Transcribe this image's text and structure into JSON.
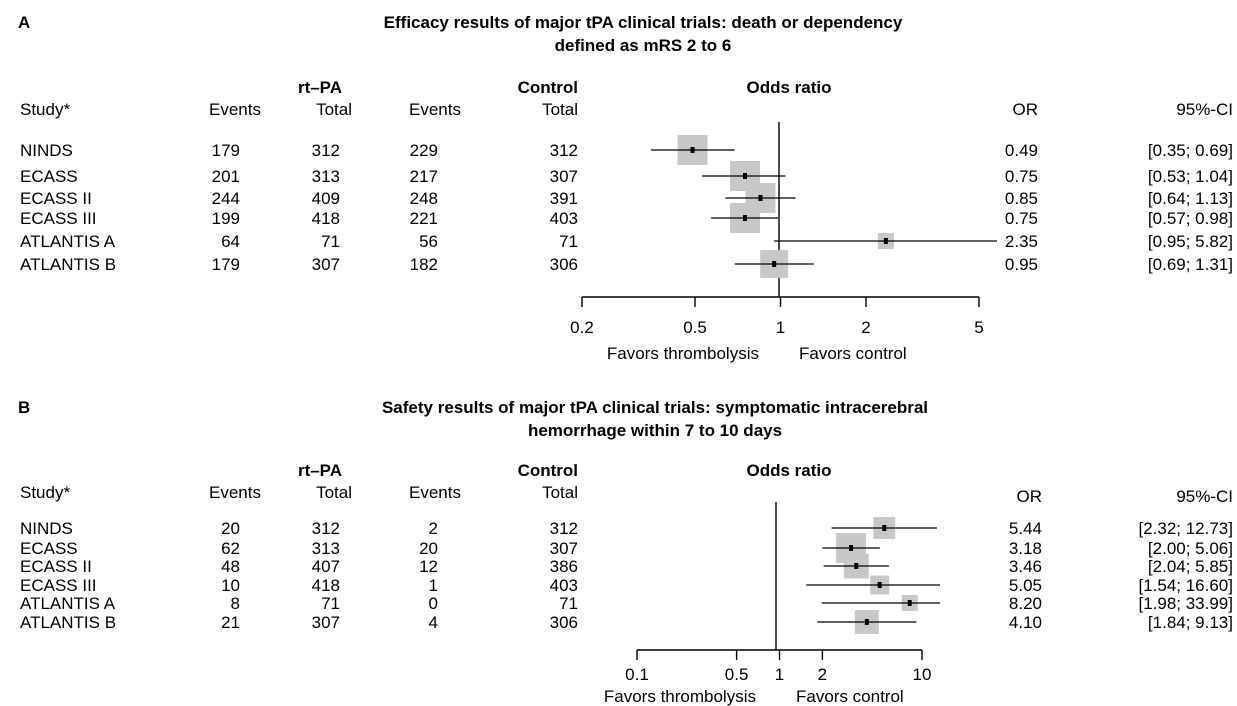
{
  "chart_data": [
    {
      "type": "forest",
      "panel_label": "A",
      "title_line1": "Efficacy results of major tPA clinical trials: death or dependency",
      "title_line2": "defined as mRS 2 to 6",
      "group_headers": {
        "treatment": "rt–PA",
        "control": "Control",
        "plot": "Odds ratio"
      },
      "column_headers": {
        "study": "Study*",
        "events1": "Events",
        "total1": "Total",
        "events2": "Events",
        "total2": "Total",
        "or": "OR",
        "ci": "95%-CI"
      },
      "studies": [
        {
          "name": "NINDS",
          "events_tpa": "179",
          "total_tpa": "312",
          "events_ctrl": "229",
          "total_ctrl": "312",
          "or": 0.49,
          "lower": 0.35,
          "upper": 0.69,
          "or_text": "0.49",
          "ci_text": "[0.35; 0.69]",
          "weight": 1.0
        },
        {
          "name": "ECASS",
          "events_tpa": "201",
          "total_tpa": "313",
          "events_ctrl": "217",
          "total_ctrl": "307",
          "or": 0.75,
          "lower": 0.53,
          "upper": 1.04,
          "or_text": "0.75",
          "ci_text": "[0.53; 1.04]",
          "weight": 1.0
        },
        {
          "name": "ECASS II",
          "events_tpa": "244",
          "total_tpa": "409",
          "events_ctrl": "248",
          "total_ctrl": "391",
          "or": 0.85,
          "lower": 0.64,
          "upper": 1.13,
          "or_text": "0.85",
          "ci_text": "[0.64; 1.13]",
          "weight": 1.0
        },
        {
          "name": "ECASS III",
          "events_tpa": "199",
          "total_tpa": "418",
          "events_ctrl": "221",
          "total_ctrl": "403",
          "or": 0.75,
          "lower": 0.57,
          "upper": 0.98,
          "or_text": "0.75",
          "ci_text": "[0.57; 0.98]",
          "weight": 1.0
        },
        {
          "name": "ATLANTIS A",
          "events_tpa": "64",
          "total_tpa": "71",
          "events_ctrl": "56",
          "total_ctrl": "71",
          "or": 2.35,
          "lower": 0.95,
          "upper": 5.82,
          "or_text": "2.35",
          "ci_text": "[0.95; 5.82]",
          "weight": 0.3
        },
        {
          "name": "ATLANTIS B",
          "events_tpa": "179",
          "total_tpa": "307",
          "events_ctrl": "182",
          "total_ctrl": "306",
          "or": 0.95,
          "lower": 0.69,
          "upper": 1.31,
          "or_text": "0.95",
          "ci_text": "[0.69; 1.31]",
          "weight": 0.9
        }
      ],
      "x_scale": "log",
      "x_range": [
        0.2,
        5
      ],
      "x_ticks": [
        0.2,
        0.5,
        1,
        2,
        5
      ],
      "x_tick_labels": [
        "0.2",
        "0.5",
        "1",
        "2",
        "5"
      ],
      "x_label_left": "Favors thrombolysis",
      "x_label_right": "Favors control"
    },
    {
      "type": "forest",
      "panel_label": "B",
      "title_line1": "Safety results of major tPA clinical trials: symptomatic intracerebral",
      "title_line2": "hemorrhage within 7 to 10 days",
      "group_headers": {
        "treatment": "rt–PA",
        "control": "Control",
        "plot": "Odds ratio"
      },
      "column_headers": {
        "study": "Study*",
        "events1": "Events",
        "total1": "Total",
        "events2": "Events",
        "total2": "Total",
        "or": "OR",
        "ci": "95%-CI"
      },
      "studies": [
        {
          "name": "NINDS",
          "events_tpa": "20",
          "total_tpa": "312",
          "events_ctrl": "2",
          "total_ctrl": "312",
          "or": 5.44,
          "lower": 2.32,
          "upper": 12.73,
          "or_text": "5.44",
          "ci_text": "[2.32; 12.73]",
          "weight": 0.6
        },
        {
          "name": "ECASS",
          "events_tpa": "62",
          "total_tpa": "313",
          "events_ctrl": "20",
          "total_ctrl": "307",
          "or": 3.18,
          "lower": 2.0,
          "upper": 5.06,
          "or_text": "3.18",
          "ci_text": "[2.00; 5.06]",
          "weight": 1.0
        },
        {
          "name": "ECASS II",
          "events_tpa": "48",
          "total_tpa": "407",
          "events_ctrl": "12",
          "total_ctrl": "386",
          "or": 3.46,
          "lower": 2.04,
          "upper": 5.85,
          "or_text": "3.46",
          "ci_text": "[2.04; 5.85]",
          "weight": 0.75
        },
        {
          "name": "ECASS III",
          "events_tpa": "10",
          "total_tpa": "418",
          "events_ctrl": "1",
          "total_ctrl": "403",
          "or": 5.05,
          "lower": 1.54,
          "upper": 16.6,
          "or_text": "5.05",
          "ci_text": "[1.54; 16.60]",
          "weight": 0.45
        },
        {
          "name": "ATLANTIS A",
          "events_tpa": "8",
          "total_tpa": "71",
          "events_ctrl": "0",
          "total_ctrl": "71",
          "or": 8.2,
          "lower": 1.98,
          "upper": 33.99,
          "or_text": "8.20",
          "ci_text": "[1.98; 33.99]",
          "weight": 0.3
        },
        {
          "name": "ATLANTIS B",
          "events_tpa": "21",
          "total_tpa": "307",
          "events_ctrl": "4",
          "total_ctrl": "306",
          "or": 4.1,
          "lower": 1.84,
          "upper": 9.13,
          "or_text": "4.10",
          "ci_text": "[1.84; 9.13]",
          "weight": 0.7
        }
      ],
      "x_scale": "log",
      "x_range": [
        0.1,
        10
      ],
      "x_ticks": [
        0.1,
        0.5,
        1,
        2,
        10
      ],
      "x_tick_labels": [
        "0.1",
        "0.5",
        "1",
        "2",
        "10"
      ],
      "x_label_left": "Favors thrombolysis",
      "x_label_right": "Favors control"
    }
  ],
  "colors": {
    "box": "#c8c8c8",
    "line": "#000000",
    "text": "#000000"
  }
}
